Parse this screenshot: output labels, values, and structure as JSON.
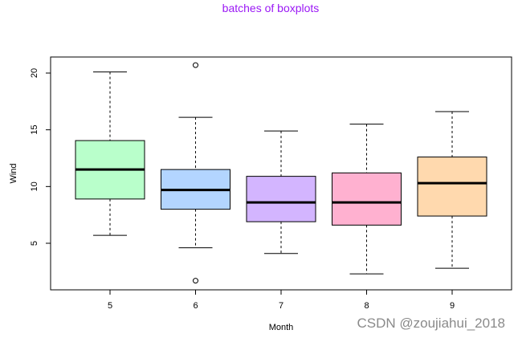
{
  "watermark": "CSDN @zoujiahui_2018",
  "chart_data": {
    "type": "box",
    "title": "batches of boxplots",
    "xlabel": "Month",
    "ylabel": "Wind",
    "ylim": [
      1,
      22
    ],
    "yticks": [
      5,
      10,
      15,
      20
    ],
    "categories": [
      "5",
      "6",
      "7",
      "8",
      "9"
    ],
    "series": [
      {
        "category": "5",
        "color": "#b9ffcb",
        "whisker_low": 5.7,
        "q1": 8.9,
        "median": 11.5,
        "q3": 14.05,
        "whisker_high": 20.1,
        "outliers": []
      },
      {
        "category": "6",
        "color": "#b3d5ff",
        "whisker_low": 4.6,
        "q1": 8.0,
        "median": 9.7,
        "q3": 11.5,
        "whisker_high": 16.1,
        "outliers": [
          20.7,
          1.7
        ]
      },
      {
        "category": "7",
        "color": "#d3b5ff",
        "whisker_low": 4.1,
        "q1": 6.9,
        "median": 8.6,
        "q3": 10.9,
        "whisker_high": 14.9,
        "outliers": []
      },
      {
        "category": "8",
        "color": "#ffb1d0",
        "whisker_low": 2.3,
        "q1": 6.6,
        "median": 8.6,
        "q3": 11.2,
        "whisker_high": 15.5,
        "outliers": []
      },
      {
        "category": "9",
        "color": "#ffd9ae",
        "whisker_low": 2.8,
        "q1": 7.4,
        "median": 10.3,
        "q3": 12.6,
        "whisker_high": 16.6,
        "outliers": []
      }
    ]
  }
}
